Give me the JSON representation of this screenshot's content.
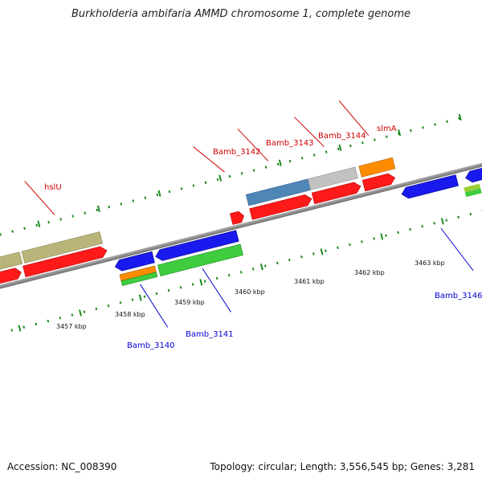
{
  "title": "Burkholderia ambifaria AMMD chromosome 1, complete genome",
  "footer": {
    "accession": "Accession: NC_008390",
    "summary": "Topology: circular; Length: 3,556,545 bp; Genes: 3,281"
  },
  "colors": {
    "axis": "#8a8a8a",
    "tick": "#1e8a1e",
    "top_label": "#cc0000",
    "bottom_label": "#0000cc",
    "forward_gene": "#ff1a1a",
    "reverse_gene": "#1a1aee",
    "olive": "#b9b47a",
    "steelblue": "#4f86b8",
    "gray": "#c2c2c2",
    "orange": "#ff8c00",
    "green": "#3fcc3f",
    "lime": "#9acd32"
  },
  "kbp_labels": [
    "3457 kbp",
    "3458 kbp",
    "3459 kbp",
    "3460 kbp",
    "3461 kbp",
    "3462 kbp",
    "3463 kbp"
  ],
  "top_gene_labels": [
    "hslU",
    "Bamb_3142",
    "Bamb_3143",
    "Bamb_3144",
    "slmA"
  ],
  "bottom_gene_labels": [
    "Bamb_3140",
    "Bamb_3141",
    "Bamb_3146"
  ]
}
